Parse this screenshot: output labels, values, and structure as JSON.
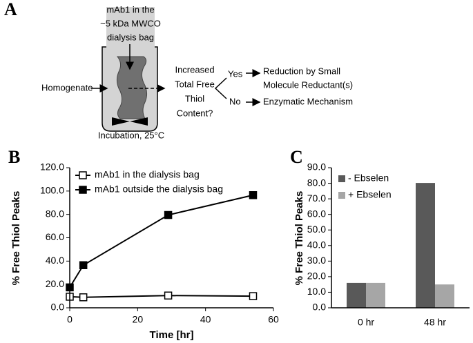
{
  "diagram": {
    "panel_label": "A",
    "bag_label": [
      "mAb1 in the",
      "~5 kDa MWCO",
      "dialysis bag"
    ],
    "input_label": "Homogenate",
    "vessel_label": "Incubation, 25°C",
    "question": [
      "Increased",
      "Total Free",
      "Thiol",
      "Content?"
    ],
    "yes_label": "Yes",
    "no_label": "No",
    "yes_outcome": [
      "Reduction by Small",
      "Molecule Reductant(s)"
    ],
    "no_outcome": "Enzymatic Mechanism"
  },
  "chart_data": [
    {
      "type": "line",
      "panel_label": "B",
      "x_label": "Time [hr]",
      "y_label": "% Free Thiol Peaks",
      "x": [
        0,
        4,
        29,
        54
      ],
      "series": [
        {
          "name": "mAb1 in the dialysis bag",
          "color": "#000000",
          "marker_fill": "#ffffff",
          "values": [
            9.5,
            9.0,
            10.5,
            10.0
          ]
        },
        {
          "name": "mAb1 outside the dialysis bag",
          "color": "#000000",
          "marker_fill": "#000000",
          "values": [
            17.5,
            36.5,
            79.5,
            96.5
          ]
        }
      ],
      "xlim": [
        0,
        60
      ],
      "xticks": [
        0,
        20,
        40,
        60
      ],
      "ylim": [
        0,
        120
      ],
      "yticks": [
        {
          "value": 0,
          "label": "0.0"
        },
        {
          "value": 20,
          "label": "20.0"
        },
        {
          "value": 40,
          "label": "40.0"
        },
        {
          "value": 60,
          "label": "60.0"
        },
        {
          "value": 80,
          "label": "80.0"
        },
        {
          "value": 100,
          "label": "100.0"
        },
        {
          "value": 120,
          "label": "120.0"
        }
      ],
      "grid": false,
      "legend": "upper left"
    },
    {
      "type": "bar",
      "panel_label": "C",
      "y_label": "% Free Thiol Peaks",
      "categories": [
        "0 hr",
        "48 hr"
      ],
      "series": [
        {
          "name": "- Ebselen",
          "color": "#595959",
          "values": [
            16.0,
            80.2
          ]
        },
        {
          "name": "+ Ebselen",
          "color": "#a6a6a6",
          "values": [
            16.0,
            15.0
          ]
        }
      ],
      "ylim": [
        0,
        90
      ],
      "yticks": [
        {
          "value": 0,
          "label": "0.0"
        },
        {
          "value": 10,
          "label": "10.0"
        },
        {
          "value": 20,
          "label": "20.0"
        },
        {
          "value": 30,
          "label": "30.0"
        },
        {
          "value": 40,
          "label": "40.0"
        },
        {
          "value": 50,
          "label": "50.0"
        },
        {
          "value": 60,
          "label": "60.0"
        },
        {
          "value": 70,
          "label": "70.0"
        },
        {
          "value": 80,
          "label": "80.0"
        },
        {
          "value": 90,
          "label": "90.0"
        }
      ],
      "grid": false,
      "legend": "upper left"
    }
  ]
}
